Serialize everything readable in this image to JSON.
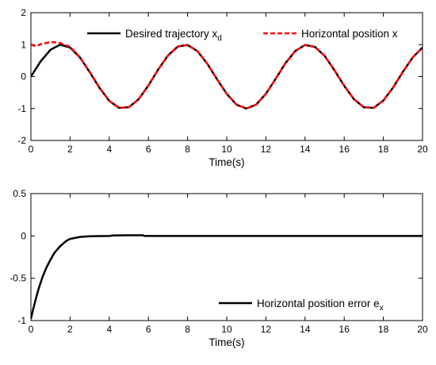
{
  "chart_data": [
    {
      "type": "line",
      "xlabel": "Time(s)",
      "ylabel": "",
      "xlim": [
        0,
        20
      ],
      "ylim": [
        -2,
        2
      ],
      "xticks": [
        0,
        2,
        4,
        6,
        8,
        10,
        12,
        14,
        16,
        18,
        20
      ],
      "yticks": [
        -2,
        -1,
        0,
        1,
        2
      ],
      "xtick_labels": [
        "0",
        "2",
        "4",
        "6",
        "8",
        "10",
        "12",
        "14",
        "16",
        "18",
        "20"
      ],
      "ytick_labels": [
        "-2",
        "-1",
        "0",
        "1",
        "2"
      ],
      "grid": false,
      "legend_position": "top",
      "series": [
        {
          "name_main": "Desired trajectory x",
          "name_sub": "d",
          "color": "#000000",
          "style": "solid",
          "x": [
            0,
            0.5,
            1,
            1.5,
            2,
            2.5,
            3,
            3.5,
            4,
            4.5,
            5,
            5.5,
            6,
            6.5,
            7,
            7.5,
            8,
            8.5,
            9,
            9.5,
            10,
            10.5,
            11,
            11.5,
            12,
            12.5,
            13,
            13.5,
            14,
            14.5,
            15,
            15.5,
            16,
            16.5,
            17,
            17.5,
            18,
            18.5,
            19,
            19.5,
            20
          ],
          "y": [
            0,
            0.48,
            0.84,
            1.0,
            0.91,
            0.6,
            0.14,
            -0.35,
            -0.76,
            -0.98,
            -0.96,
            -0.71,
            -0.28,
            0.22,
            0.66,
            0.94,
            0.99,
            0.8,
            0.41,
            -0.08,
            -0.54,
            -0.88,
            -1.0,
            -0.88,
            -0.54,
            -0.07,
            0.42,
            0.8,
            0.99,
            0.93,
            0.65,
            0.2,
            -0.29,
            -0.71,
            -0.96,
            -0.98,
            -0.75,
            -0.34,
            0.15,
            0.6,
            0.91
          ]
        },
        {
          "name_main": "Horizontal position x",
          "name_sub": "",
          "color": "#ff0000",
          "style": "dashed",
          "x": [
            0,
            0.25,
            0.5,
            0.75,
            1,
            1.25,
            1.5,
            2,
            2.5,
            3,
            3.5,
            4,
            4.5,
            5,
            5.5,
            6,
            6.5,
            7,
            7.5,
            8,
            8.5,
            9,
            9.5,
            10,
            10.5,
            11,
            11.5,
            12,
            12.5,
            13,
            13.5,
            14,
            14.5,
            15,
            15.5,
            16,
            16.5,
            17,
            17.5,
            18,
            18.5,
            19,
            19.5,
            20
          ],
          "y": [
            1.0,
            0.95,
            1.01,
            1.05,
            1.08,
            1.07,
            1.05,
            0.93,
            0.61,
            0.15,
            -0.34,
            -0.76,
            -0.98,
            -0.96,
            -0.71,
            -0.28,
            0.22,
            0.66,
            0.94,
            0.99,
            0.8,
            0.41,
            -0.08,
            -0.54,
            -0.88,
            -1.0,
            -0.88,
            -0.54,
            -0.07,
            0.42,
            0.8,
            0.99,
            0.93,
            0.65,
            0.2,
            -0.29,
            -0.71,
            -0.96,
            -0.98,
            -0.75,
            -0.34,
            0.15,
            0.6,
            0.91
          ]
        }
      ]
    },
    {
      "type": "line",
      "xlabel": "Time(s)",
      "ylabel": "",
      "xlim": [
        0,
        20
      ],
      "ylim": [
        -1,
        0.5
      ],
      "xticks": [
        0,
        2,
        4,
        6,
        8,
        10,
        12,
        14,
        16,
        18,
        20
      ],
      "yticks": [
        -1,
        -0.5,
        0,
        0.5
      ],
      "xtick_labels": [
        "0",
        "2",
        "4",
        "6",
        "8",
        "10",
        "12",
        "14",
        "16",
        "18",
        "20"
      ],
      "ytick_labels": [
        "-1",
        "-0.5",
        "0",
        "0.5"
      ],
      "grid": false,
      "legend_position": "bottom-right",
      "series": [
        {
          "name_main": "Horizontal position error e",
          "name_sub": "x",
          "color": "#000000",
          "style": "solid",
          "x": [
            0,
            0.1,
            0.2,
            0.3,
            0.4,
            0.5,
            0.6,
            0.8,
            1.0,
            1.2,
            1.5,
            1.8,
            2.0,
            2.5,
            3.0,
            4.0,
            4.2,
            5.0,
            5.7,
            5.8,
            7,
            10,
            15,
            20
          ],
          "y": [
            -0.98,
            -0.88,
            -0.79,
            -0.7,
            -0.62,
            -0.55,
            -0.48,
            -0.37,
            -0.28,
            -0.2,
            -0.12,
            -0.06,
            -0.035,
            -0.012,
            -0.004,
            0.0,
            0.006,
            0.008,
            0.008,
            0.0,
            0.0,
            0.0,
            0.0,
            0.0
          ]
        }
      ]
    }
  ]
}
